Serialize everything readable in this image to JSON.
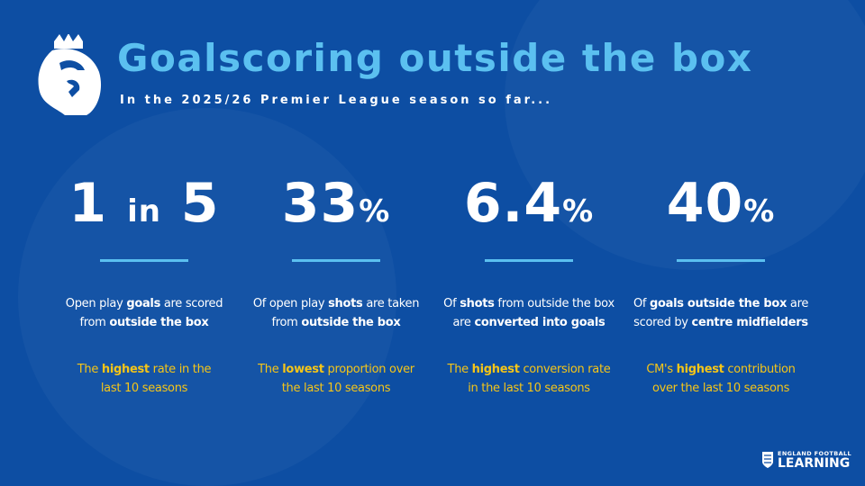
{
  "header": {
    "title": "Goalscoring outside the box",
    "subtitle": "In the 2025/26 Premier League season so far..."
  },
  "colors": {
    "background": "#0d4ea3",
    "accent": "#5bc0f0",
    "highlight": "#f5c518"
  },
  "cards": [
    {
      "stat": "1 in 5",
      "stat_parts": [
        "1 ",
        "in",
        " 5"
      ],
      "unit": "",
      "desc": [
        [
          "Open play ",
          0
        ],
        [
          "goals",
          1
        ],
        [
          " are scored",
          0
        ],
        [
          "from ",
          0
        ],
        [
          "outside the box",
          1
        ]
      ],
      "desc_break": 3,
      "note": [
        [
          "The ",
          0
        ],
        [
          "highest",
          1
        ],
        [
          " rate in the",
          0
        ],
        [
          "last 10 seasons",
          0
        ]
      ],
      "note_break": 3
    },
    {
      "stat": "33",
      "unit": "%",
      "desc": [
        [
          "Of open play ",
          0
        ],
        [
          "shots",
          1
        ],
        [
          " are taken",
          0
        ],
        [
          "from ",
          0
        ],
        [
          "outside the box",
          1
        ]
      ],
      "desc_break": 3,
      "note": [
        [
          "The ",
          0
        ],
        [
          "lowest",
          1
        ],
        [
          " proportion over",
          0
        ],
        [
          "the last 10 seasons",
          0
        ]
      ],
      "note_break": 3
    },
    {
      "stat": "6.4",
      "unit": "%",
      "desc": [
        [
          "Of ",
          0
        ],
        [
          "shots",
          1
        ],
        [
          " from outside the box",
          0
        ],
        [
          "are ",
          0
        ],
        [
          "converted into goals",
          1
        ]
      ],
      "desc_break": 3,
      "note": [
        [
          "The ",
          0
        ],
        [
          "highest",
          1
        ],
        [
          " conversion rate",
          0
        ],
        [
          "in the last 10 seasons",
          0
        ]
      ],
      "note_break": 3
    },
    {
      "stat": "40",
      "unit": "%",
      "desc": [
        [
          "Of ",
          0
        ],
        [
          "goals outside the box",
          1
        ],
        [
          " are",
          0
        ],
        [
          "scored by ",
          0
        ],
        [
          "centre midfielders",
          1
        ]
      ],
      "desc_break": 3,
      "note": [
        [
          "CM's ",
          0
        ],
        [
          "highest",
          1
        ],
        [
          " contribution",
          0
        ],
        [
          "over the last 10 seasons",
          0
        ]
      ],
      "note_break": 3
    }
  ],
  "footer": {
    "brand_line1": "ENGLAND FOOTBALL",
    "brand_line2": "LEARNING"
  }
}
